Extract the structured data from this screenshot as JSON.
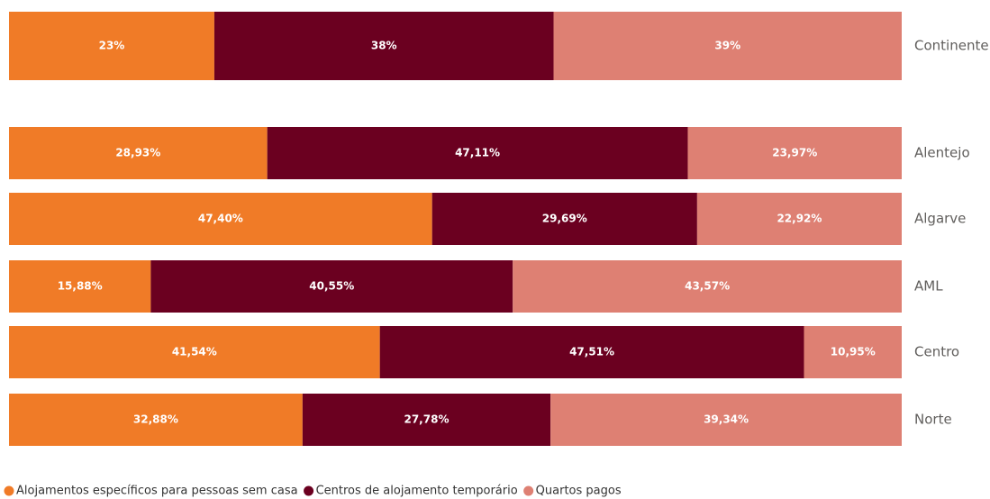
{
  "chart_data": {
    "type": "stacked_bar_horizontal_percent",
    "categories": [
      "Continente",
      "Alentejo",
      "Algarve",
      "AML",
      "Centro",
      "Norte"
    ],
    "series": [
      {
        "name": "Alojamentos específicos para pessoas sem casa",
        "color": "#f07b27",
        "values": [
          23,
          28.93,
          47.4,
          15.88,
          41.54,
          32.88
        ],
        "value_labels": [
          "23%",
          "28,93%",
          "47,40%",
          "15,88%",
          "41,54%",
          "32,88%"
        ]
      },
      {
        "name": "Centros de alojamento temporário",
        "color": "#6b0020",
        "values": [
          38,
          47.11,
          29.69,
          40.55,
          47.51,
          27.78
        ],
        "value_labels": [
          "38%",
          "47,11%",
          "29,69%",
          "40,55%",
          "47,51%",
          "27,78%"
        ]
      },
      {
        "name": "Quartos pagos",
        "color": "#de8073",
        "values": [
          39,
          23.97,
          22.92,
          43.57,
          10.95,
          39.34
        ],
        "value_labels": [
          "39%",
          "23,97%",
          "22,92%",
          "43,57%",
          "10,95%",
          "39,34%"
        ]
      }
    ],
    "legend": "bottom-left"
  }
}
